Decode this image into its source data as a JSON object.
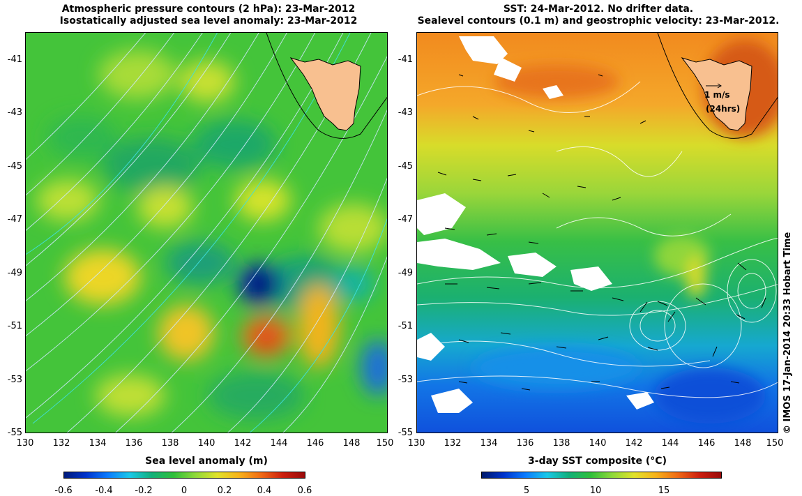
{
  "left": {
    "title_line1": "Atmospheric pressure contours (2 hPa): 23-Mar-2012",
    "title_line2": "Isostatically adjusted sea level anomaly: 23-Mar-2012",
    "colorbar_label": "Sea level anomaly (m)",
    "colorbar_ticks": [
      "-0.6",
      "-0.4",
      "-0.2",
      "0",
      "0.2",
      "0.4",
      "0.6"
    ]
  },
  "right": {
    "title_line1": "SST: 24-Mar-2012. No drifter data.",
    "title_line2": "Sealevel contours (0.1 m) and geostrophic velocity: 23-Mar-2012.",
    "colorbar_label": "3-day SST composite (°C)",
    "colorbar_ticks": [
      "5",
      "10",
      "15"
    ],
    "velocity_legend_1": "1 m/s",
    "velocity_legend_2": "(24hrs)"
  },
  "axes": {
    "lat_ticks": [
      "-41",
      "-43",
      "-45",
      "-47",
      "-49",
      "-51",
      "-53",
      "-55"
    ],
    "lon_ticks": [
      "130",
      "132",
      "134",
      "136",
      "138",
      "140",
      "142",
      "144",
      "146",
      "148",
      "150"
    ]
  },
  "credit": "© IMOS 17-Jan-2014 20:33 Hobart Time",
  "colors": {
    "land": "#f8c090",
    "pressure_contour": "#cfe8ff",
    "sealevel_contour": "#ffffff"
  }
}
